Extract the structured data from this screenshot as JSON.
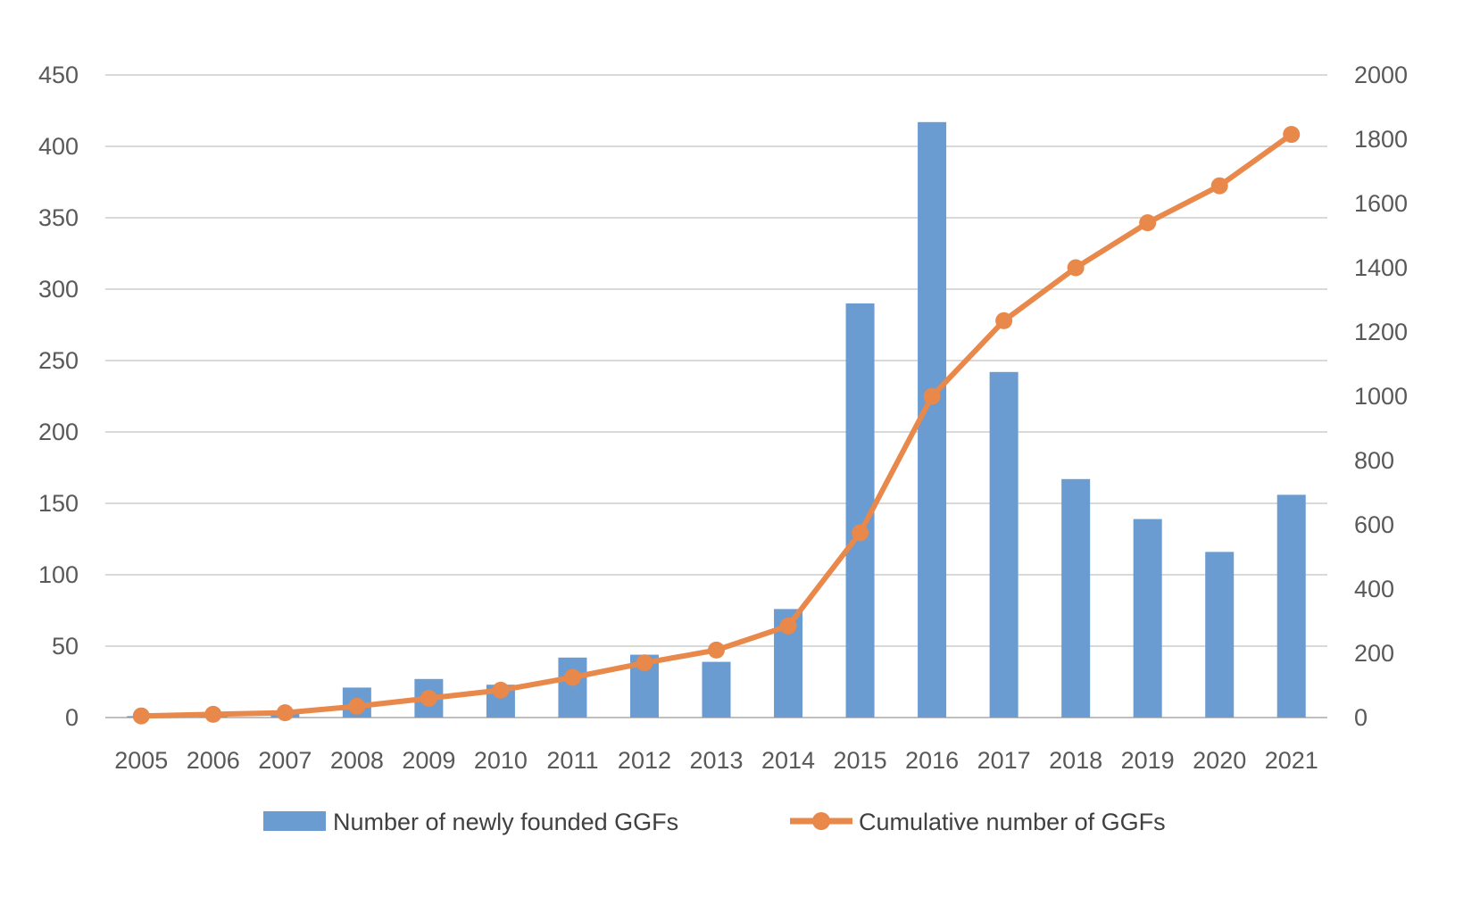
{
  "chart_data": {
    "type": "bar+line",
    "categories": [
      "2005",
      "2006",
      "2007",
      "2008",
      "2009",
      "2010",
      "2011",
      "2012",
      "2013",
      "2014",
      "2015",
      "2016",
      "2017",
      "2018",
      "2019",
      "2020",
      "2021"
    ],
    "series": [
      {
        "name": "Number of newly founded GGFs",
        "type": "bar",
        "axis": "left",
        "color": "#6A9BD1",
        "values": [
          1,
          2,
          3,
          21,
          27,
          23,
          42,
          44,
          39,
          76,
          290,
          417,
          242,
          167,
          139,
          116,
          156
        ]
      },
      {
        "name": "Cumulative number of GGFs",
        "type": "line",
        "axis": "right",
        "color": "#E8884A",
        "values": [
          5,
          10,
          15,
          35,
          60,
          85,
          125,
          170,
          210,
          285,
          575,
          1000,
          1235,
          1400,
          1540,
          1655,
          1815
        ]
      }
    ],
    "y_left": {
      "min": 0,
      "max": 450,
      "ticks": [
        "0",
        "50",
        "100",
        "150",
        "200",
        "250",
        "300",
        "350",
        "400",
        "450"
      ]
    },
    "y_right": {
      "min": 0,
      "max": 2000,
      "ticks": [
        "0",
        "200",
        "400",
        "600",
        "800",
        "1000",
        "1200",
        "1400",
        "1600",
        "1800",
        "2000"
      ]
    },
    "grid": true,
    "legend_position": "bottom",
    "title": "",
    "xlabel": "",
    "ylabel": ""
  }
}
